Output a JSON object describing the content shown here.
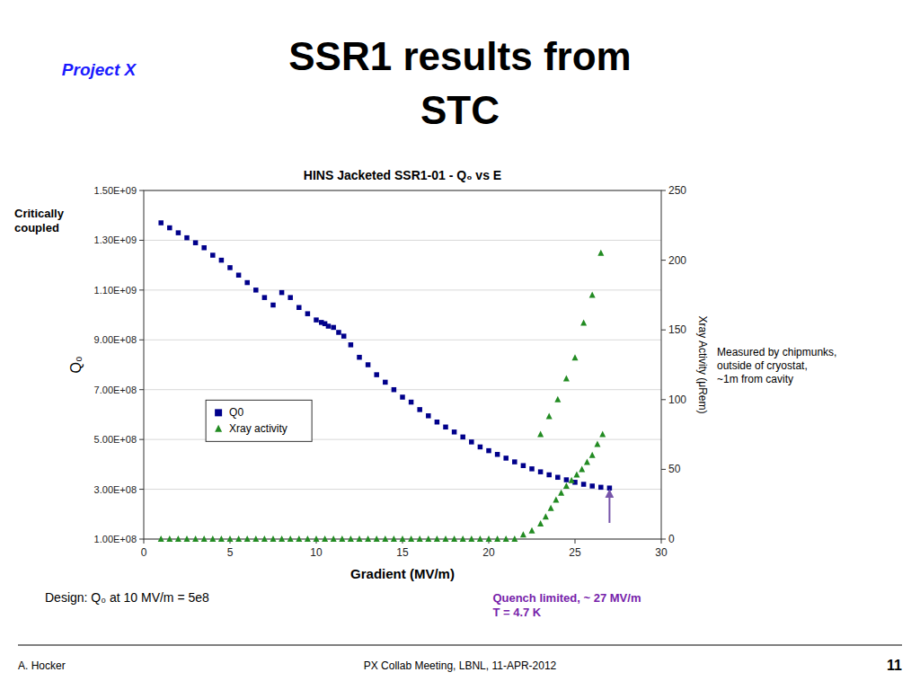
{
  "slide": {
    "title_lines": [
      "SSR1 results from",
      "STC"
    ],
    "logo_text": "Project X",
    "footer_left": "A. Hocker",
    "footer_center": "PX Collab Meeting, LBNL, 11-APR-2012",
    "footer_right": "11"
  },
  "chart_data": {
    "type": "scatter",
    "title": "HINS Jacketed SSR1-01 - Q₀ vs E",
    "x_label": "Gradient (MV/m)",
    "y_label": "Q₀",
    "y2_label": "Xray Activity (μRem)",
    "xlim": [
      0,
      30
    ],
    "ylim": [
      100000000.0,
      1500000000.0
    ],
    "y2lim": [
      0,
      250
    ],
    "xticks": [
      0,
      5,
      10,
      15,
      20,
      25,
      30
    ],
    "yticks": [
      {
        "value": 100000000.0,
        "label": "1.00E+08"
      },
      {
        "value": 300000000.0,
        "label": "3.00E+08"
      },
      {
        "value": 500000000.0,
        "label": "5.00E+08"
      },
      {
        "value": 700000000.0,
        "label": "7.00E+08"
      },
      {
        "value": 900000000.0,
        "label": "9.00E+08"
      },
      {
        "value": 1100000000.0,
        "label": "1.10E+09"
      },
      {
        "value": 1300000000.0,
        "label": "1.30E+09"
      },
      {
        "value": 1500000000.0,
        "label": "1.50E+09"
      }
    ],
    "y2ticks": [
      0,
      50,
      100,
      150,
      200,
      250
    ],
    "grid": true,
    "legend": "lower left",
    "series": [
      {
        "name": "Q0",
        "color": "#00008B",
        "marker": "square",
        "x": [
          1.0,
          1.5,
          2.0,
          2.5,
          3.0,
          3.5,
          4.0,
          4.5,
          5.0,
          5.5,
          6.0,
          6.5,
          7.0,
          7.5,
          8.0,
          8.5,
          9.0,
          9.5,
          10.0,
          10.3,
          10.5,
          10.7,
          11.0,
          11.3,
          11.6,
          12.0,
          12.5,
          13.0,
          13.5,
          14.0,
          14.5,
          15.0,
          15.5,
          16.0,
          16.5,
          17.0,
          17.5,
          18.0,
          18.5,
          19.0,
          19.5,
          20.0,
          20.5,
          21.0,
          21.5,
          22.0,
          22.5,
          23.0,
          23.5,
          24.0,
          24.5,
          25.0,
          25.5,
          26.0,
          26.5,
          27.0
        ],
        "values": [
          1370000000.0,
          1350000000.0,
          1330000000.0,
          1310000000.0,
          1290000000.0,
          1270000000.0,
          1240000000.0,
          1220000000.0,
          1190000000.0,
          1160000000.0,
          1130000000.0,
          1100000000.0,
          1070000000.0,
          1040000000.0,
          1090000000.0,
          1070000000.0,
          1030000000.0,
          1005000000.0,
          980000000.0,
          970000000.0,
          965000000.0,
          955000000.0,
          950000000.0,
          930000000.0,
          915000000.0,
          880000000.0,
          830000000.0,
          800000000.0,
          760000000.0,
          730000000.0,
          700000000.0,
          670000000.0,
          650000000.0,
          620000000.0,
          595000000.0,
          570000000.0,
          550000000.0,
          530000000.0,
          510000000.0,
          490000000.0,
          470000000.0,
          455000000.0,
          440000000.0,
          425000000.0,
          410000000.0,
          395000000.0,
          382000000.0,
          370000000.0,
          358000000.0,
          348000000.0,
          338000000.0,
          328000000.0,
          320000000.0,
          313000000.0,
          308000000.0,
          305000000.0
        ]
      },
      {
        "name": "Xray activity",
        "color": "#228B22",
        "marker": "triangle",
        "axis": "y2",
        "x": [
          1.0,
          1.5,
          2.0,
          2.5,
          3.0,
          3.5,
          4.0,
          4.5,
          5.0,
          5.5,
          6.0,
          6.5,
          7.0,
          7.5,
          8.0,
          8.5,
          9.0,
          9.5,
          10.0,
          10.5,
          11.0,
          11.5,
          12.0,
          12.5,
          13.0,
          13.5,
          14.0,
          14.5,
          15.0,
          15.5,
          16.0,
          16.5,
          17.0,
          17.5,
          18.0,
          18.5,
          19.0,
          19.5,
          20.0,
          20.5,
          21.0,
          21.5,
          22.0,
          22.5,
          23.0,
          23.3,
          23.6,
          23.9,
          24.2,
          24.5,
          24.8,
          25.1,
          25.4,
          25.7,
          26.0,
          26.3,
          26.6,
          23.0,
          23.5,
          24.0,
          24.5,
          25.0,
          25.5,
          26.0,
          26.5
        ],
        "values": [
          0,
          0,
          0,
          0,
          0,
          0,
          0,
          0,
          0,
          0,
          0,
          0,
          0,
          0,
          0,
          0,
          0,
          0,
          0,
          0,
          0,
          0,
          0,
          0,
          0,
          0,
          0,
          0,
          0,
          0,
          0,
          0,
          0,
          0,
          0,
          0,
          0,
          0,
          0,
          0,
          0,
          0,
          3.0,
          6.0,
          11.0,
          16.0,
          22.0,
          28.0,
          33.0,
          38.0,
          42.0,
          46.0,
          50.0,
          55.0,
          60.0,
          68.0,
          75.0,
          75.0,
          88.0,
          100.0,
          115.0,
          130.0,
          155.0,
          175.0,
          205.0
        ]
      }
    ],
    "annotations": [
      {
        "text": "Critically\ncoupled"
      },
      {
        "text": "Measured by chipmunks,\noutside of cryostat,\n~1m from cavity"
      },
      {
        "text": "Quench limited, ~ 27 MV/m\nT = 4.7 K",
        "x": 27.0,
        "y": 305000000.0,
        "y_from": 165000000.0,
        "color": "#7722aa",
        "arrow_color": "#7755aa"
      },
      {
        "text": "Design: Q₀ at 10 MV/m = 5e8"
      }
    ]
  }
}
